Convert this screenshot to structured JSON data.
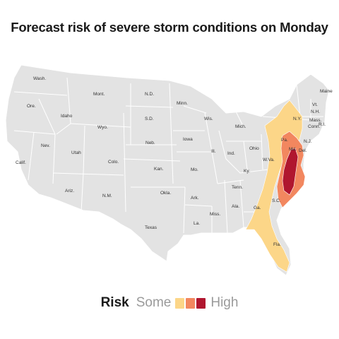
{
  "title": "Forecast risk of severe storm conditions on Monday",
  "legend": {
    "title": "Risk",
    "low_label": "Some",
    "high_label": "High",
    "levels": [
      {
        "level": "some",
        "color": "#fcd688"
      },
      {
        "level": "moderate",
        "color": "#f2875f"
      },
      {
        "level": "high",
        "color": "#b0162f"
      }
    ]
  },
  "colors": {
    "land": "#e3e3e3",
    "border": "#ffffff"
  },
  "states": [
    "Wash.",
    "Ore.",
    "Calif.",
    "Idaho",
    "Nev.",
    "Mont.",
    "Wyo.",
    "Utah",
    "Ariz.",
    "Colo.",
    "N.M.",
    "N.D.",
    "S.D.",
    "Neb.",
    "Kan.",
    "Okla.",
    "Texas",
    "Minn.",
    "Iowa",
    "Mo.",
    "Ark.",
    "La.",
    "Wis.",
    "Ill.",
    "Mich.",
    "Ind.",
    "Ohio",
    "Ky.",
    "Tenn.",
    "Miss.",
    "Ala.",
    "Ga.",
    "Fla.",
    "S.C.",
    "W.Va.",
    "Pa.",
    "N.Y.",
    "N.J.",
    "Del.",
    "Md.",
    "Vt.",
    "N.H.",
    "Maine",
    "Mass.",
    "Conn.",
    "R.I."
  ]
}
